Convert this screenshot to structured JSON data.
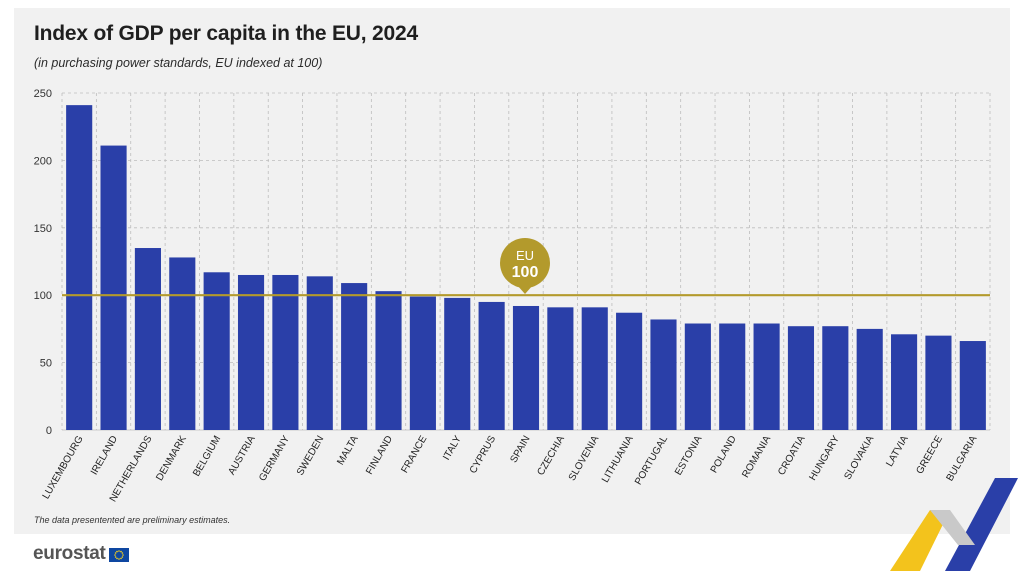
{
  "title": "Index of GDP per capita in the EU, 2024",
  "subtitle": "(in purchasing power standards, EU indexed at 100)",
  "footnote": "The data presentented are preliminary estimates.",
  "logo": {
    "text": "eurostat",
    "flag_icon": "eu-flag-icon"
  },
  "colors": {
    "bar": "#2a3fa8",
    "reference_line": "#b39a2c",
    "marker": "#b39a2c",
    "grid": "#bdbdbd",
    "panel": "#f1f1f1",
    "deco_blue": "#2a3fa8",
    "deco_yellow": "#f3c31c"
  },
  "chart_data": {
    "type": "bar",
    "categories": [
      "LUXEMBOURG",
      "IRELAND",
      "NETHERLANDS",
      "DENMARK",
      "BELGIUM",
      "AUSTRIA",
      "GERMANY",
      "SWEDEN",
      "MALTA",
      "FINLAND",
      "FRANCE",
      "ITALY",
      "CYPRUS",
      "SPAIN",
      "CZECHIA",
      "SLOVENIA",
      "LITHUANIA",
      "PORTUGAL",
      "ESTONIA",
      "POLAND",
      "ROMANIA",
      "CROATIA",
      "HUNGARY",
      "SLOVAKIA",
      "LATVIA",
      "GREECE",
      "BULGARIA"
    ],
    "values": [
      241,
      211,
      135,
      128,
      117,
      115,
      115,
      114,
      109,
      103,
      99,
      98,
      95,
      92,
      91,
      91,
      87,
      82,
      79,
      79,
      79,
      77,
      77,
      75,
      71,
      70,
      66
    ],
    "ylim": [
      0,
      250
    ],
    "yticks": [
      0,
      50,
      100,
      150,
      200,
      250
    ],
    "grid": true,
    "reference_line": {
      "value": 100,
      "label_top": "EU",
      "label_bottom": "100"
    }
  }
}
